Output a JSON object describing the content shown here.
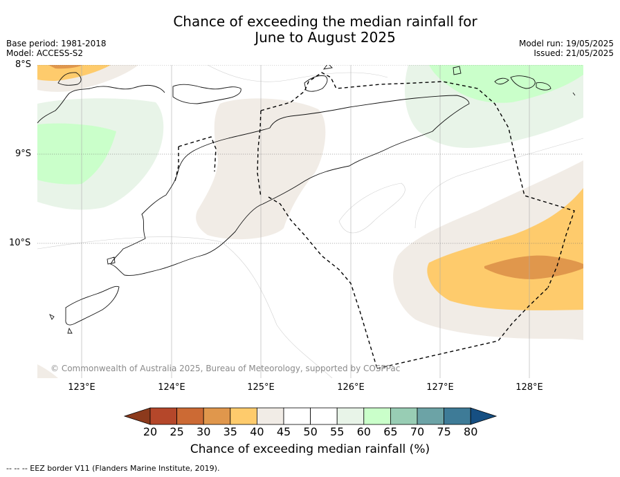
{
  "title_line1": "Chance of exceeding the median rainfall for",
  "title_line2": "June to August 2025",
  "base_period": "Base period: 1981-2018",
  "model": "Model: ACCESS-S2",
  "model_run": "Model run: 19/05/2025",
  "issued": "Issued: 21/05/2025",
  "lat_labels": [
    "8°S",
    "9°S",
    "10°S"
  ],
  "lon_labels": [
    "123°E",
    "124°E",
    "125°E",
    "126°E",
    "127°E",
    "128°E"
  ],
  "copyright": "© Commonwealth of Australia 2025, Bureau of Meteorology, supported by COSPPac",
  "colorbar": {
    "ticks": [
      "20",
      "25",
      "30",
      "35",
      "40",
      "45",
      "50",
      "55",
      "60",
      "65",
      "70",
      "75",
      "80"
    ],
    "colors": [
      "#8c3a1c",
      "#b5472a",
      "#cc6a34",
      "#e0974c",
      "#fecb6c",
      "#f1ece6",
      "#ffffff",
      "#ffffff",
      "#e8f4e8",
      "#caffca",
      "#98cdb4",
      "#6ca3a6",
      "#3e7b97",
      "#164f82"
    ],
    "label": "Chance of exceeding median rainfall (%)"
  },
  "footnote": "--  --  -- EEZ border V11 (Flanders Marine Institute, 2019)."
}
